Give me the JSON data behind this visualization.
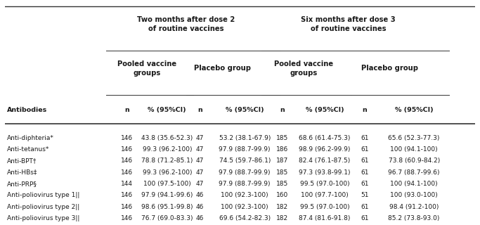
{
  "title1": "Two months after dose 2\nof routine vaccines",
  "title2": "Six months after dose 3\nof routine vaccines",
  "sub1": "Pooled vaccine\ngroups",
  "sub2": "Placebo group",
  "sub3": "Pooled vaccine\ngroups",
  "sub4": "Placebo group",
  "col_headers": [
    "n",
    "% (95%CI)",
    "n",
    "% (95%CI)",
    "n",
    "% (95%CI)",
    "n",
    "% (95%CI)"
  ],
  "antibodies_col": "Antibodies",
  "rows": [
    [
      "Anti-diphteria*",
      "146",
      "43.8 (35.6-52.3)",
      "47",
      "53.2 (38.1-67.9)",
      "185",
      "68.6 (61.4-75.3)",
      "61",
      "65.6 (52.3-77.3)"
    ],
    [
      "Anti-tetanus*",
      "146",
      "99.3 (96.2-100)",
      "47",
      "97.9 (88.7-99.9)",
      "186",
      "98.9 (96.2-99.9)",
      "61",
      "100 (94.1-100)"
    ],
    [
      "Anti-BPT†",
      "146",
      "78.8 (71.2-85.1)",
      "47",
      "74.5 (59.7-86.1)",
      "187",
      "82.4 (76.1-87.5)",
      "61",
      "73.8 (60.9-84.2)"
    ],
    [
      "Anti-HBs‡",
      "146",
      "99.3 (96.2-100)",
      "47",
      "97.9 (88.7-99.9)",
      "185",
      "97.3 (93.8-99.1)",
      "61",
      "96.7 (88.7-99.6)"
    ],
    [
      "Anti-PRP§",
      "144",
      "100 (97.5-100)",
      "47",
      "97.9 (88.7-99.9)",
      "185",
      "99.5 (97.0-100)",
      "61",
      "100 (94.1-100)"
    ],
    [
      "Anti-poliovirus type 1||",
      "146",
      "97.9 (94.1-99.6)",
      "46",
      "100 (92.3-100)",
      "160",
      "100 (97.7-100)",
      "51",
      "100 (93.0-100)"
    ],
    [
      "Anti-poliovirus type 2||",
      "146",
      "98.6 (95.1-99.8)",
      "46",
      "100 (92.3-100)",
      "182",
      "99.5 (97.0-100)",
      "61",
      "98.4 (91.2-100)"
    ],
    [
      "Anti-poliovirus type 3||",
      "146",
      "76.7 (69.0-83.3)",
      "46",
      "69.6 (54.2-82.3)",
      "182",
      "87.4 (81.6-91.8)",
      "61",
      "85.2 (73.8-93.0)"
    ]
  ],
  "bg_color": "#ffffff",
  "text_color": "#1a1a1a",
  "header_color": "#1a1a1a",
  "line_color": "#333333",
  "fig_width": 6.83,
  "fig_height": 3.2,
  "dpi": 100
}
